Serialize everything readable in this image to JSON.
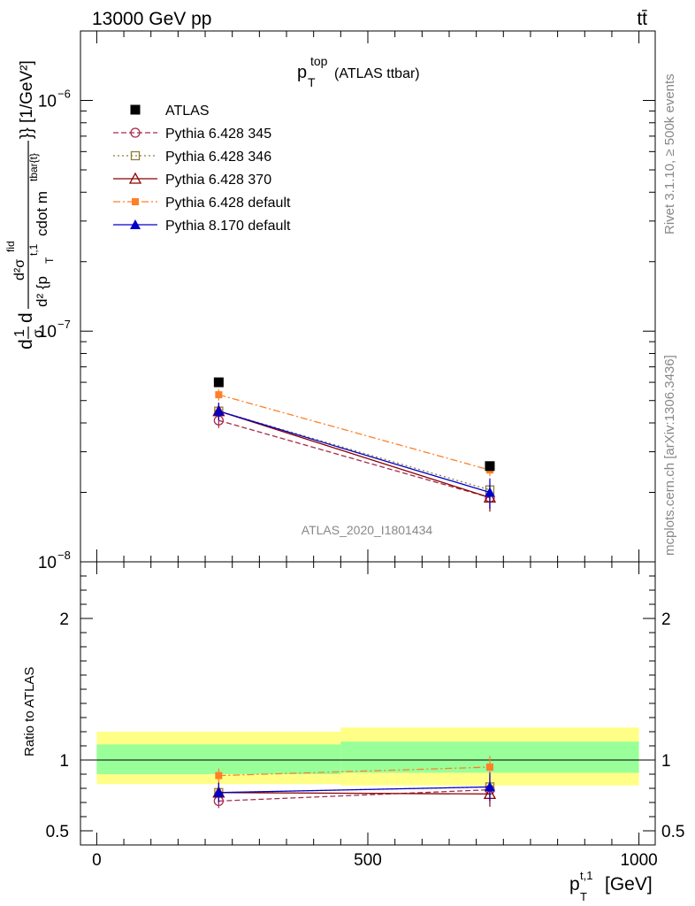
{
  "header": {
    "energy_label": "13000 GeV pp",
    "process_label": "tt̄"
  },
  "side_labels": {
    "rivet": "Rivet 3.1.10, ≥ 500k events",
    "mcplots": "mcplots.cern.ch [arXiv:1306.3436]"
  },
  "watermark": "ATLAS_2020_I1801434",
  "chart_data": {
    "type": "scatter",
    "title": {
      "main": "p",
      "sup": "top",
      "sub": "T",
      "suffix": "(ATLAS ttbar)"
    },
    "xlabel": {
      "main": "p",
      "sup": "t,1",
      "sub": "T",
      "unit": "[GeV]"
    },
    "ylabel": {
      "prefix": "d",
      "frac1_num": "1",
      "frac1_den": "σ",
      "frac2_num": "d²σ",
      "frac2_num_sup": "fid",
      "frac2_den": "d² {p",
      "frac2_den_sub": "T",
      "frac2_den_sup": "t,1",
      "frac2_den_mid": "cdot m",
      "frac2_den_sup2": "tbar{t}",
      "suffix": "}} [1/GeV²]"
    },
    "xlim": [
      -30,
      1030
    ],
    "ylim": [
      1e-08,
      2e-06
    ],
    "yscale": "log",
    "x_ticks": [
      "0",
      "500",
      "1000"
    ],
    "x_tick_values": [
      0,
      500,
      1000
    ],
    "y_ticks": [
      {
        "base": "10",
        "exp": "−8",
        "value": 1e-08
      },
      {
        "base": "10",
        "exp": "−7",
        "value": 1e-07
      },
      {
        "base": "10",
        "exp": "−6",
        "value": 1e-06
      }
    ],
    "x": [
      225,
      725
    ],
    "series": [
      {
        "name": "ATLAS",
        "values": [
          6e-08,
          2.6e-08
        ],
        "color": "#000000",
        "marker": "square-filled",
        "dash": "none"
      },
      {
        "name": "Pythia 6.428 345",
        "values": [
          4.1e-08,
          1.9e-08
        ],
        "errors": [
          3e-09,
          2e-09
        ],
        "color": "#a52a4a",
        "marker": "circle-open",
        "dash": "6,3"
      },
      {
        "name": "Pythia 6.428 346",
        "values": [
          4.5e-08,
          2.05e-08
        ],
        "errors": [
          3e-09,
          2e-09
        ],
        "color": "#8b7d3a",
        "marker": "square-open",
        "dash": "2,3"
      },
      {
        "name": "Pythia 6.428 370",
        "values": [
          4.5e-08,
          1.9e-08
        ],
        "errors": [
          4e-09,
          2.5e-09
        ],
        "color": "#8b0000",
        "marker": "triangle-open",
        "dash": "none"
      },
      {
        "name": "Pythia 6.428 default",
        "values": [
          5.3e-08,
          2.5e-08
        ],
        "errors": [
          3e-09,
          1.5e-09
        ],
        "color": "#ff7f27",
        "marker": "square-filled-small",
        "dash": "8,3,2,3"
      },
      {
        "name": "Pythia 8.170 default",
        "values": [
          4.5e-08,
          2e-08
        ],
        "errors": [
          4e-09,
          3e-09
        ],
        "color": "#0000cc",
        "marker": "triangle-filled",
        "dash": "none"
      }
    ],
    "ratio": {
      "ylabel": "Ratio to ATLAS",
      "ylim": [
        0.4,
        2.4
      ],
      "y_ticks": [
        "0.5",
        "1",
        "2"
      ],
      "y_tick_values": [
        0.5,
        1,
        2
      ],
      "bins": [
        {
          "lo": 0,
          "hi": 450,
          "green": [
            0.9,
            1.11
          ],
          "yellow": [
            0.83,
            1.2
          ]
        },
        {
          "lo": 450,
          "hi": 1000,
          "green": [
            0.91,
            1.13
          ],
          "yellow": [
            0.82,
            1.23
          ]
        }
      ],
      "series": [
        {
          "name": "Pythia 6.428 345",
          "values": [
            0.71,
            0.79
          ],
          "errors": [
            0.05,
            0.08
          ]
        },
        {
          "name": "Pythia 6.428 346",
          "values": [
            0.77,
            0.81
          ],
          "errors": [
            0.05,
            0.08
          ]
        },
        {
          "name": "Pythia 6.428 370",
          "values": [
            0.77,
            0.76
          ],
          "errors": [
            0.07,
            0.09
          ]
        },
        {
          "name": "Pythia 6.428 default",
          "values": [
            0.89,
            0.95
          ],
          "errors": [
            0.05,
            0.08
          ]
        },
        {
          "name": "Pythia 8.170 default",
          "values": [
            0.77,
            0.81
          ],
          "errors": [
            0.07,
            0.1
          ]
        }
      ]
    }
  }
}
